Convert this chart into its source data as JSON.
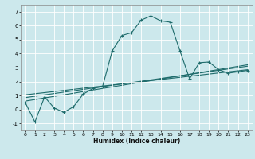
{
  "title": "",
  "xlabel": "Humidex (Indice chaleur)",
  "ylabel": "",
  "xlim": [
    -0.5,
    23.5
  ],
  "ylim": [
    -1.5,
    7.5
  ],
  "xticks": [
    0,
    1,
    2,
    3,
    4,
    5,
    6,
    7,
    8,
    9,
    10,
    11,
    12,
    13,
    14,
    15,
    16,
    17,
    18,
    19,
    20,
    21,
    22,
    23
  ],
  "yticks": [
    -1,
    0,
    1,
    2,
    3,
    4,
    5,
    6,
    7
  ],
  "bg_color": "#cce8ec",
  "grid_color": "#ffffff",
  "line_color": "#1e6b6b",
  "main_line_x": [
    0,
    1,
    2,
    3,
    4,
    5,
    6,
    7,
    8,
    9,
    10,
    11,
    12,
    13,
    14,
    15,
    16,
    17,
    18,
    19,
    20,
    21,
    22,
    23
  ],
  "main_line_y": [
    0.5,
    -0.9,
    0.9,
    0.1,
    -0.2,
    0.2,
    1.1,
    1.5,
    1.65,
    4.2,
    5.3,
    5.5,
    6.4,
    6.7,
    6.35,
    6.25,
    4.2,
    2.2,
    3.35,
    3.4,
    2.85,
    2.6,
    2.7,
    2.8
  ],
  "reg_line1_x": [
    0,
    23
  ],
  "reg_line1_y": [
    0.6,
    3.2
  ],
  "reg_line2_x": [
    0,
    23
  ],
  "reg_line2_y": [
    0.85,
    3.1
  ],
  "reg_line3_x": [
    0,
    23
  ],
  "reg_line3_y": [
    1.05,
    2.85
  ]
}
